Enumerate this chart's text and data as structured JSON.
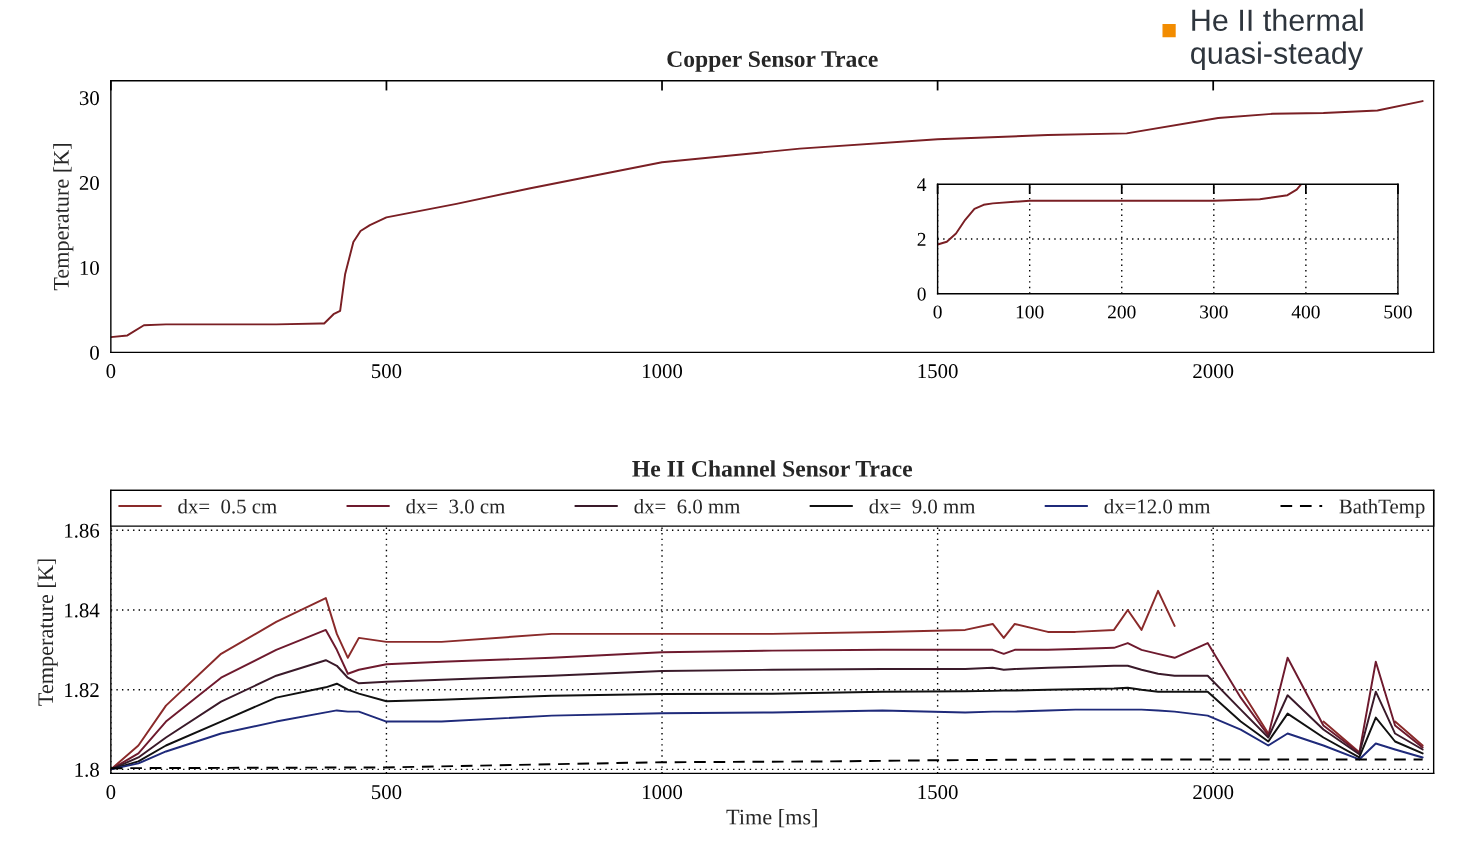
{
  "chart_data": [
    {
      "type": "line",
      "title": "Copper Sensor Trace",
      "ylabel": "Temperature [K]",
      "xlim": [
        0,
        2400
      ],
      "ylim": [
        0,
        32
      ],
      "xticks": [
        0,
        500,
        1000,
        1500,
        2000
      ],
      "yticks": [
        0,
        10,
        20,
        30
      ],
      "grid": false,
      "legend": false,
      "line_style": "solid",
      "annotations": [
        "He II thermal\nquasi-steady"
      ],
      "x": [
        0,
        30,
        60,
        100,
        200,
        300,
        380,
        387,
        404,
        416,
        425,
        440,
        453,
        470,
        500,
        627,
        759,
        1000,
        1250,
        1500,
        1700,
        1843,
        2009,
        2108,
        2200,
        2298,
        2380
      ],
      "series": [
        {
          "color": "#7a1f24",
          "values": [
            1.8,
            2.0,
            3.2,
            3.3,
            3.3,
            3.3,
            3.4,
            3.4,
            4.5,
            4.9,
            9.2,
            13.0,
            14.3,
            15.0,
            15.9,
            17.5,
            19.3,
            22.4,
            24.0,
            25.1,
            25.6,
            25.8,
            27.6,
            28.1,
            28.2,
            28.5,
            29.6
          ]
        }
      ]
    },
    {
      "type": "line",
      "xlim": [
        0,
        500
      ],
      "ylim": [
        0,
        4
      ],
      "xticks": [
        0,
        100,
        200,
        300,
        400,
        500
      ],
      "yticks": [
        0,
        2,
        4
      ],
      "grid": true,
      "legend": false,
      "line_style": "solid",
      "x": [
        0,
        10,
        20,
        30,
        40,
        50,
        60,
        100,
        200,
        300,
        350,
        380,
        390,
        395
      ],
      "series": [
        {
          "color": "#7a1f24",
          "values": [
            1.8,
            1.9,
            2.2,
            2.7,
            3.1,
            3.25,
            3.3,
            3.4,
            3.4,
            3.4,
            3.45,
            3.6,
            3.8,
            4.0
          ]
        }
      ]
    },
    {
      "type": "line",
      "title": "He II Channel Sensor Trace",
      "xlabel": "Time [ms]",
      "ylabel": "Temperature [K]",
      "xlim": [
        0,
        2400
      ],
      "ylim": [
        1.799,
        1.87
      ],
      "xticks": [
        0,
        500,
        1000,
        1500,
        2000
      ],
      "yticks": [
        1.8,
        1.82,
        1.84,
        1.86
      ],
      "grid": true,
      "legend": "top",
      "x": [
        0,
        50,
        100,
        200,
        300,
        390,
        410,
        430,
        450,
        500,
        600,
        800,
        1000,
        1200,
        1400,
        1550,
        1600,
        1620,
        1640,
        1700,
        1750,
        1820,
        1845,
        1870,
        1900,
        1930,
        1990,
        2050,
        2100,
        2135,
        2200,
        2265,
        2295,
        2330,
        2380
      ],
      "series": [
        {
          "name": "dx=  0.5 cm",
          "color": "#8a2a2a",
          "line_style": "solid",
          "values": [
            1.8,
            1.806,
            1.816,
            1.829,
            1.837,
            1.843,
            1.834,
            1.828,
            1.833,
            1.832,
            1.832,
            1.834,
            1.834,
            1.834,
            1.8345,
            1.835,
            1.8365,
            1.833,
            1.8365,
            1.8345,
            1.8345,
            1.835,
            1.84,
            1.835,
            1.8448,
            1.836,
            null,
            1.82,
            1.809,
            null,
            1.812,
            1.8043,
            null,
            1.812,
            1.806
          ]
        },
        {
          "name": "dx=  3.0 cm",
          "color": "#6e1a2e",
          "line_style": "solid",
          "values": [
            1.8,
            1.804,
            1.812,
            1.823,
            1.83,
            1.835,
            1.83,
            1.824,
            1.825,
            1.8264,
            1.827,
            1.828,
            1.8294,
            1.8298,
            1.83,
            1.83,
            1.83,
            1.829,
            1.83,
            1.83,
            1.8302,
            1.8305,
            1.8317,
            1.83,
            1.829,
            1.828,
            1.8317,
            1.818,
            1.8085,
            1.828,
            1.811,
            1.8041,
            1.827,
            1.811,
            1.8055
          ]
        },
        {
          "name": "dx=  6.0 mm",
          "color": "#3a1a2a",
          "line_style": "solid",
          "values": [
            1.8,
            1.803,
            1.808,
            1.817,
            1.8235,
            1.8274,
            1.826,
            1.823,
            1.8216,
            1.822,
            1.8225,
            1.8235,
            1.8247,
            1.825,
            1.8252,
            1.8252,
            1.8255,
            1.825,
            1.8252,
            1.8255,
            1.8257,
            1.826,
            1.826,
            1.825,
            1.824,
            1.8235,
            1.8235,
            1.815,
            1.808,
            1.8186,
            1.81,
            1.8038,
            1.8195,
            1.809,
            1.805
          ]
        },
        {
          "name": "dx=  9.0 mm",
          "color": "#111111",
          "line_style": "solid",
          "values": [
            1.8,
            1.802,
            1.806,
            1.812,
            1.818,
            1.8206,
            1.8215,
            1.82,
            1.819,
            1.8171,
            1.8175,
            1.8185,
            1.8189,
            1.819,
            1.8195,
            1.8196,
            1.8197,
            1.8198,
            1.8198,
            1.82,
            1.8201,
            1.8203,
            1.8205,
            1.82,
            1.8195,
            1.8195,
            1.8195,
            1.812,
            1.807,
            1.814,
            1.808,
            1.803,
            1.813,
            1.807,
            1.804
          ]
        },
        {
          "name": "dx=12.0 mm",
          "color": "#1f2a7a",
          "line_style": "solid",
          "values": [
            1.8,
            1.8015,
            1.8045,
            1.809,
            1.812,
            1.8143,
            1.8148,
            1.8145,
            1.8145,
            1.812,
            1.812,
            1.8135,
            1.8141,
            1.8143,
            1.8148,
            1.8143,
            1.8145,
            1.8145,
            1.8145,
            1.8148,
            1.815,
            1.815,
            1.815,
            1.815,
            1.8148,
            1.8145,
            1.8135,
            1.81,
            1.806,
            1.809,
            1.806,
            1.8025,
            1.8065,
            1.805,
            1.803
          ]
        },
        {
          "name": "BathTemp",
          "color": "#000000",
          "line_style": "dashed",
          "x": [
            0,
            500,
            800,
            1000,
            1300,
            1500,
            1750,
            2000,
            2380
          ],
          "values": [
            1.8003,
            1.8005,
            1.8013,
            1.8018,
            1.802,
            1.8023,
            1.8025,
            1.8025,
            1.8025
          ]
        }
      ]
    }
  ]
}
